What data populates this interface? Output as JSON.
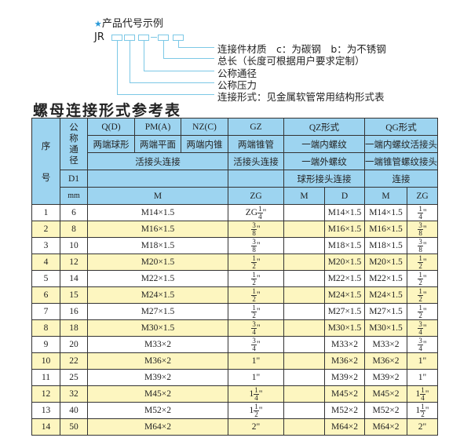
{
  "code_example": {
    "title": "产品代号示例",
    "star_icon": "star",
    "prefix": "JR",
    "labels": [
      "连接件材质　c：为碳钢　b：为不锈钢",
      "总长（长度可根据用户要求定制）",
      "公称通径",
      "公称压力",
      "连接形式：见金属软管常用结构形式表"
    ]
  },
  "table_title": "螺母连接形式参考表",
  "header": {
    "seq": [
      "序",
      "号"
    ],
    "dn": "公称通径",
    "row1": [
      "Q(D)",
      "PM(A)",
      "NZ(C)",
      "GZ",
      "QZ形式",
      "QG形式"
    ],
    "row2": [
      "两端球形",
      "两端平面",
      "两端内锥",
      "两端锥管",
      "一端内螺纹",
      "一端内螺纹活接头"
    ],
    "row3": [
      "活接头连接",
      "活接头连接",
      "一端外螺纹",
      "一端锥管螺纹接头"
    ],
    "row4": [
      "D1",
      "",
      "",
      "球形接头连接",
      "连接"
    ],
    "row5": [
      "mm",
      "M",
      "ZG",
      "M",
      "D",
      "M",
      "ZG"
    ]
  },
  "rows": [
    {
      "no": "1",
      "d1": "6",
      "m": "M14×1.5",
      "zg": {
        "pre": "ZG",
        "w": "",
        "n": "1",
        "d": "4",
        "s": "\""
      },
      "qz_m": "",
      "qz_d": "M14×1.5",
      "qg_m": "M14×1.5",
      "qg_zg": {
        "w": "",
        "n": "1",
        "d": "4",
        "s": "\""
      }
    },
    {
      "no": "2",
      "d1": "8",
      "m": "M16×1.5",
      "zg": {
        "pre": "",
        "w": "",
        "n": "3",
        "d": "8",
        "s": "\""
      },
      "qz_m": "",
      "qz_d": "M16×1.5",
      "qg_m": "M16×1.5",
      "qg_zg": {
        "w": "",
        "n": "3",
        "d": "8",
        "s": "\""
      }
    },
    {
      "no": "3",
      "d1": "10",
      "m": "M18×1.5",
      "zg": {
        "pre": "",
        "w": "",
        "n": "3",
        "d": "8",
        "s": "\""
      },
      "qz_m": "",
      "qz_d": "M18×1.5",
      "qg_m": "M18×1.5",
      "qg_zg": {
        "w": "",
        "n": "3",
        "d": "8",
        "s": "\""
      }
    },
    {
      "no": "4",
      "d1": "12",
      "m": "M20×1.5",
      "zg": {
        "pre": "",
        "w": "",
        "n": "1",
        "d": "2",
        "s": "\""
      },
      "qz_m": "",
      "qz_d": "M20×1.5",
      "qg_m": "M20×1.5",
      "qg_zg": {
        "w": "",
        "n": "1",
        "d": "2",
        "s": "\""
      }
    },
    {
      "no": "5",
      "d1": "14",
      "m": "M22×1.5",
      "zg": {
        "pre": "",
        "w": "",
        "n": "1",
        "d": "2",
        "s": "\""
      },
      "qz_m": "",
      "qz_d": "M22×1.5",
      "qg_m": "M22×1.5",
      "qg_zg": {
        "w": "",
        "n": "1",
        "d": "2",
        "s": "\""
      }
    },
    {
      "no": "6",
      "d1": "15",
      "m": "M24×1.5",
      "zg": {
        "pre": "",
        "w": "",
        "n": "1",
        "d": "2",
        "s": "\""
      },
      "qz_m": "",
      "qz_d": "M24×1.5",
      "qg_m": "M24×1.5",
      "qg_zg": {
        "w": "",
        "n": "1",
        "d": "2",
        "s": "\""
      }
    },
    {
      "no": "7",
      "d1": "16",
      "m": "M27×1.5",
      "zg": {
        "pre": "",
        "w": "",
        "n": "1",
        "d": "2",
        "s": "\""
      },
      "qz_m": "",
      "qz_d": "M27×1.5",
      "qg_m": "M27×1.5",
      "qg_zg": {
        "w": "",
        "n": "1",
        "d": "2",
        "s": "\""
      }
    },
    {
      "no": "8",
      "d1": "18",
      "m": "M30×1.5",
      "zg": {
        "pre": "",
        "w": "",
        "n": "3",
        "d": "4",
        "s": "\""
      },
      "qz_m": "",
      "qz_d": "M30×1.5",
      "qg_m": "M30×1.5",
      "qg_zg": {
        "w": "",
        "n": "3",
        "d": "4",
        "s": "\""
      }
    },
    {
      "no": "9",
      "d1": "20",
      "m": "M33×2",
      "zg": {
        "pre": "",
        "w": "",
        "n": "3",
        "d": "4",
        "s": "\""
      },
      "qz_m": "",
      "qz_d": "M33×2",
      "qg_m": "M33×2",
      "qg_zg": {
        "w": "",
        "n": "3",
        "d": "4",
        "s": "\""
      }
    },
    {
      "no": "10",
      "d1": "22",
      "m": "M36×2",
      "zg": {
        "pre": "",
        "w": "1\"",
        "n": "",
        "d": "",
        "s": ""
      },
      "qz_m": "",
      "qz_d": "M36×2",
      "qg_m": "M36×2",
      "qg_zg": {
        "w": "1\"",
        "n": "",
        "d": "",
        "s": ""
      }
    },
    {
      "no": "11",
      "d1": "25",
      "m": "M39×2",
      "zg": {
        "pre": "",
        "w": "1\"",
        "n": "",
        "d": "",
        "s": ""
      },
      "qz_m": "",
      "qz_d": "M39×2",
      "qg_m": "M39×2",
      "qg_zg": {
        "w": "1\"",
        "n": "",
        "d": "",
        "s": ""
      }
    },
    {
      "no": "12",
      "d1": "32",
      "m": "M45×2",
      "zg": {
        "pre": "",
        "w": "1",
        "n": "1",
        "d": "4",
        "s": "\""
      },
      "qz_m": "",
      "qz_d": "M45×2",
      "qg_m": "M45×2",
      "qg_zg": {
        "w": "1",
        "n": "1",
        "d": "4",
        "s": "\""
      }
    },
    {
      "no": "13",
      "d1": "40",
      "m": "M52×2",
      "zg": {
        "pre": "",
        "w": "1",
        "n": "1",
        "d": "2",
        "s": "\""
      },
      "qz_m": "",
      "qz_d": "M52×2",
      "qg_m": "M52×2",
      "qg_zg": {
        "w": "1",
        "n": "1",
        "d": "2",
        "s": "\""
      }
    },
    {
      "no": "14",
      "d1": "50",
      "m": "M64×2",
      "zg": {
        "pre": "",
        "w": "2\"",
        "n": "",
        "d": "",
        "s": ""
      },
      "qz_m": "",
      "qz_d": "M64×2",
      "qg_m": "M64×2",
      "qg_zg": {
        "w": "2\"",
        "n": "",
        "d": "",
        "s": ""
      }
    }
  ],
  "colors": {
    "header_bg": "#9dd4f0",
    "alt_row_bg": "#fdf6c0",
    "line": "#7cc8e6",
    "star": "#2a9ad8"
  }
}
